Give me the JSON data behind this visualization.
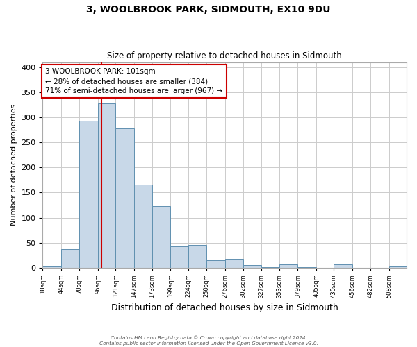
{
  "title": "3, WOOLBROOK PARK, SIDMOUTH, EX10 9DU",
  "subtitle": "Size of property relative to detached houses in Sidmouth",
  "xlabel": "Distribution of detached houses by size in Sidmouth",
  "ylabel": "Number of detached properties",
  "bar_edges": [
    18,
    44,
    70,
    96,
    121,
    147,
    173,
    199,
    224,
    250,
    276,
    302,
    327,
    353,
    379,
    405,
    430,
    456,
    482,
    508,
    533
  ],
  "bar_heights": [
    3,
    37,
    293,
    328,
    278,
    166,
    123,
    42,
    45,
    15,
    17,
    5,
    1,
    7,
    1,
    0,
    6,
    0,
    0,
    2
  ],
  "bar_color": "#c8d8e8",
  "bar_edge_color": "#6090b0",
  "property_line_x": 101,
  "property_line_color": "#cc0000",
  "annotation_line1": "3 WOOLBROOK PARK: 101sqm",
  "annotation_line2": "← 28% of detached houses are smaller (384)",
  "annotation_line3": "71% of semi-detached houses are larger (967) →",
  "annotation_box_edge_color": "#cc0000",
  "annotation_box_face_color": "#ffffff",
  "ylim": [
    0,
    410
  ],
  "yticks": [
    0,
    50,
    100,
    150,
    200,
    250,
    300,
    350,
    400
  ],
  "grid_color": "#cccccc",
  "bg_color": "#ffffff",
  "footer_line1": "Contains HM Land Registry data © Crown copyright and database right 2024.",
  "footer_line2": "Contains public sector information licensed under the Open Government Licence v3.0."
}
